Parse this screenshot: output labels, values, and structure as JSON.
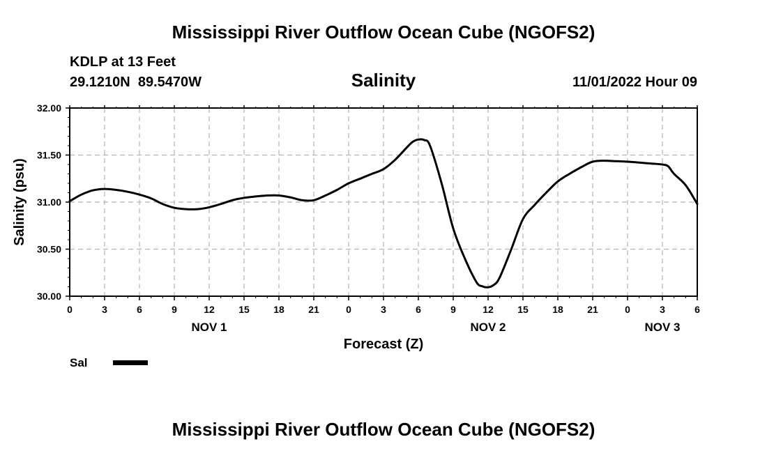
{
  "chart_data": {
    "type": "line",
    "title": "Mississippi River Outflow Ocean Cube (NGOFS2)",
    "footer_title": "Mississippi River Outflow Ocean Cube (NGOFS2)",
    "station": "KDLP at 13 Feet",
    "coordinates": "29.1210N  89.5470W",
    "subtitle": "Salinity",
    "timestamp": "11/01/2022 Hour 09",
    "xlabel": "Forecast (Z)",
    "ylabel": "Salinity (psu)",
    "ylim": [
      30.0,
      32.0
    ],
    "xlim": [
      0,
      54
    ],
    "yticks": [
      "30.00",
      "30.50",
      "31.00",
      "31.50",
      "32.00"
    ],
    "ytick_values": [
      30.0,
      30.5,
      31.0,
      31.5,
      32.0
    ],
    "xticks": [
      "0",
      "3",
      "6",
      "9",
      "12",
      "15",
      "18",
      "21",
      "0",
      "3",
      "6",
      "9",
      "12",
      "15",
      "18",
      "21",
      "0",
      "3",
      "6"
    ],
    "date_labels": [
      {
        "label": "NOV 1",
        "hour": 12
      },
      {
        "label": "NOV 2",
        "hour": 36
      },
      {
        "label": "NOV 3",
        "hour": 51
      }
    ],
    "grid": true,
    "legend": {
      "placement": "bottom-left",
      "entries": [
        {
          "name": "Sal",
          "color": "#000000"
        }
      ]
    },
    "series": [
      {
        "name": "Sal",
        "color": "#000000",
        "x": [
          0,
          1,
          2,
          3,
          4,
          5,
          6,
          7,
          8,
          9,
          10,
          11,
          12,
          13,
          14,
          15,
          16,
          17,
          18,
          19,
          20,
          21,
          22,
          23,
          24,
          25,
          26,
          27,
          28,
          29,
          29.5,
          30,
          30.5,
          31,
          32,
          33,
          34,
          35,
          35.5,
          36,
          36.5,
          37,
          38,
          39,
          40,
          41,
          42,
          43,
          44,
          45,
          46,
          47,
          48,
          49,
          50,
          51,
          51.5,
          52,
          53,
          54
        ],
        "values": [
          31.01,
          31.08,
          31.125,
          31.14,
          31.13,
          31.11,
          31.08,
          31.04,
          30.98,
          30.94,
          30.925,
          30.925,
          30.945,
          30.98,
          31.02,
          31.045,
          31.06,
          31.07,
          31.07,
          31.05,
          31.02,
          31.02,
          31.07,
          31.13,
          31.2,
          31.25,
          31.3,
          31.35,
          31.45,
          31.58,
          31.64,
          31.665,
          31.66,
          31.6,
          31.2,
          30.72,
          30.4,
          30.15,
          30.105,
          30.095,
          30.12,
          30.2,
          30.5,
          30.82,
          30.97,
          31.1,
          31.22,
          31.3,
          31.37,
          31.43,
          31.44,
          31.435,
          31.43,
          31.42,
          31.41,
          31.4,
          31.38,
          31.3,
          31.18,
          30.98
        ]
      }
    ]
  }
}
